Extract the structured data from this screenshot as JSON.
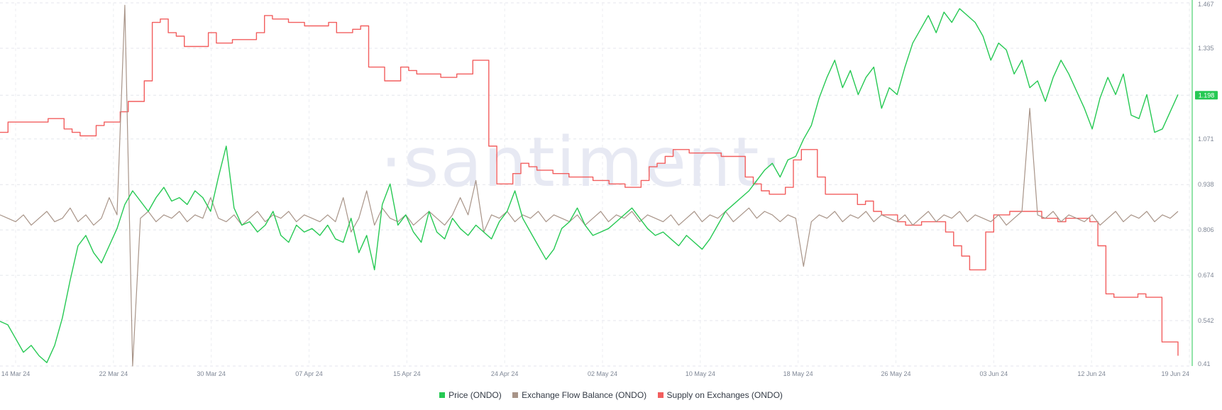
{
  "watermark": "·santiment·",
  "legend": [
    {
      "label": "Price (ONDO)",
      "color": "#26c953"
    },
    {
      "label": "Exchange Flow Balance (ONDO)",
      "color": "#a89488"
    },
    {
      "label": "Supply on Exchanges (ONDO)",
      "color": "#f25e5e"
    }
  ],
  "chart_data": {
    "type": "line",
    "x_ticks": [
      "14 Mar 24",
      "22 Mar 24",
      "30 Mar 24",
      "07 Apr 24",
      "15 Apr 24",
      "24 Apr 24",
      "02 May 24",
      "10 May 24",
      "18 May 24",
      "26 May 24",
      "03 Jun 24",
      "12 Jun 24",
      "19 Jun 24"
    ],
    "y_right_ticks": [
      "1.467",
      "1.335",
      "1.198",
      "1.071",
      "0.938",
      "0.806",
      "0.674",
      "0.542",
      "0.41"
    ],
    "ylim": [
      0.41,
      1.467
    ],
    "last_price_label": "1.198",
    "grid": true,
    "legend_position": "bottom-center",
    "series": [
      {
        "name": "Price (ONDO)",
        "color": "#26c953",
        "axis": "right",
        "values": [
          0.54,
          0.53,
          0.49,
          0.45,
          0.47,
          0.44,
          0.42,
          0.47,
          0.55,
          0.66,
          0.76,
          0.79,
          0.74,
          0.71,
          0.76,
          0.81,
          0.88,
          0.92,
          0.89,
          0.86,
          0.9,
          0.93,
          0.89,
          0.9,
          0.88,
          0.92,
          0.9,
          0.86,
          0.96,
          1.05,
          0.87,
          0.82,
          0.83,
          0.8,
          0.82,
          0.86,
          0.79,
          0.77,
          0.82,
          0.8,
          0.81,
          0.79,
          0.82,
          0.78,
          0.77,
          0.84,
          0.74,
          0.79,
          0.69,
          0.88,
          0.94,
          0.82,
          0.85,
          0.8,
          0.77,
          0.86,
          0.8,
          0.78,
          0.84,
          0.81,
          0.79,
          0.82,
          0.8,
          0.78,
          0.83,
          0.86,
          0.92,
          0.84,
          0.8,
          0.76,
          0.72,
          0.75,
          0.81,
          0.83,
          0.87,
          0.82,
          0.79,
          0.8,
          0.81,
          0.83,
          0.85,
          0.87,
          0.84,
          0.81,
          0.79,
          0.8,
          0.78,
          0.76,
          0.79,
          0.77,
          0.75,
          0.78,
          0.82,
          0.86,
          0.88,
          0.9,
          0.92,
          0.95,
          0.98,
          1.0,
          0.96,
          1.01,
          1.02,
          1.07,
          1.11,
          1.19,
          1.25,
          1.3,
          1.22,
          1.27,
          1.2,
          1.25,
          1.28,
          1.16,
          1.22,
          1.2,
          1.28,
          1.35,
          1.39,
          1.43,
          1.38,
          1.44,
          1.41,
          1.45,
          1.43,
          1.41,
          1.37,
          1.3,
          1.35,
          1.33,
          1.26,
          1.3,
          1.22,
          1.24,
          1.18,
          1.25,
          1.3,
          1.26,
          1.21,
          1.16,
          1.1,
          1.19,
          1.25,
          1.2,
          1.26,
          1.14,
          1.13,
          1.2,
          1.09,
          1.1,
          1.15,
          1.2
        ]
      },
      {
        "name": "Exchange Flow Balance (ONDO)",
        "color": "#a89488",
        "axis": "left",
        "values": [
          0.85,
          0.84,
          0.83,
          0.85,
          0.82,
          0.84,
          0.86,
          0.83,
          0.84,
          0.87,
          0.83,
          0.85,
          0.82,
          0.84,
          0.9,
          0.85,
          1.46,
          0.41,
          0.84,
          0.86,
          0.83,
          0.85,
          0.84,
          0.86,
          0.83,
          0.85,
          0.84,
          0.9,
          0.84,
          0.83,
          0.85,
          0.82,
          0.84,
          0.86,
          0.83,
          0.85,
          0.84,
          0.86,
          0.83,
          0.85,
          0.84,
          0.83,
          0.85,
          0.83,
          0.9,
          0.8,
          0.84,
          0.92,
          0.82,
          0.87,
          0.84,
          0.83,
          0.85,
          0.82,
          0.84,
          0.86,
          0.84,
          0.82,
          0.85,
          0.9,
          0.85,
          0.95,
          0.8,
          0.85,
          0.84,
          0.86,
          0.83,
          0.85,
          0.84,
          0.86,
          0.83,
          0.85,
          0.84,
          0.83,
          0.85,
          0.82,
          0.84,
          0.86,
          0.83,
          0.85,
          0.84,
          0.86,
          0.83,
          0.85,
          0.84,
          0.83,
          0.85,
          0.82,
          0.84,
          0.86,
          0.83,
          0.85,
          0.84,
          0.86,
          0.83,
          0.85,
          0.87,
          0.84,
          0.86,
          0.85,
          0.83,
          0.85,
          0.84,
          0.7,
          0.83,
          0.85,
          0.84,
          0.86,
          0.83,
          0.85,
          0.84,
          0.86,
          0.83,
          0.85,
          0.84,
          0.83,
          0.85,
          0.82,
          0.84,
          0.86,
          0.83,
          0.85,
          0.84,
          0.86,
          0.83,
          0.85,
          0.84,
          0.83,
          0.85,
          0.82,
          0.84,
          0.86,
          1.16,
          0.85,
          0.84,
          0.86,
          0.83,
          0.85,
          0.84,
          0.83,
          0.85,
          0.82,
          0.84,
          0.86,
          0.83,
          0.85,
          0.84,
          0.86,
          0.83,
          0.85,
          0.84,
          0.86
        ]
      },
      {
        "name": "Supply on Exchanges (ONDO)",
        "color": "#f25e5e",
        "axis": "left",
        "values": [
          1.09,
          1.12,
          1.12,
          1.12,
          1.12,
          1.12,
          1.13,
          1.13,
          1.1,
          1.09,
          1.08,
          1.08,
          1.11,
          1.12,
          1.12,
          1.15,
          1.18,
          1.18,
          1.24,
          1.41,
          1.42,
          1.38,
          1.37,
          1.34,
          1.34,
          1.34,
          1.38,
          1.35,
          1.35,
          1.36,
          1.36,
          1.36,
          1.38,
          1.43,
          1.42,
          1.42,
          1.41,
          1.41,
          1.4,
          1.4,
          1.4,
          1.41,
          1.38,
          1.38,
          1.39,
          1.4,
          1.28,
          1.28,
          1.24,
          1.24,
          1.28,
          1.27,
          1.26,
          1.26,
          1.26,
          1.25,
          1.25,
          1.26,
          1.26,
          1.3,
          1.3,
          1.05,
          0.94,
          0.94,
          0.97,
          1.0,
          0.99,
          0.98,
          0.98,
          0.97,
          0.97,
          0.96,
          0.96,
          0.96,
          0.95,
          0.95,
          0.94,
          0.94,
          0.93,
          0.93,
          0.95,
          0.99,
          1.0,
          1.02,
          1.04,
          1.04,
          1.03,
          1.03,
          1.03,
          1.03,
          1.02,
          1.02,
          1.02,
          0.96,
          0.94,
          0.92,
          0.91,
          0.91,
          0.93,
          1.01,
          1.04,
          1.04,
          0.96,
          0.91,
          0.91,
          0.91,
          0.91,
          0.88,
          0.89,
          0.86,
          0.85,
          0.85,
          0.83,
          0.82,
          0.82,
          0.83,
          0.83,
          0.83,
          0.8,
          0.76,
          0.73,
          0.69,
          0.69,
          0.8,
          0.85,
          0.85,
          0.86,
          0.86,
          0.86,
          0.86,
          0.84,
          0.84,
          0.83,
          0.84,
          0.84,
          0.84,
          0.83,
          0.76,
          0.62,
          0.61,
          0.61,
          0.61,
          0.62,
          0.61,
          0.61,
          0.48,
          0.48,
          0.44
        ]
      }
    ]
  }
}
